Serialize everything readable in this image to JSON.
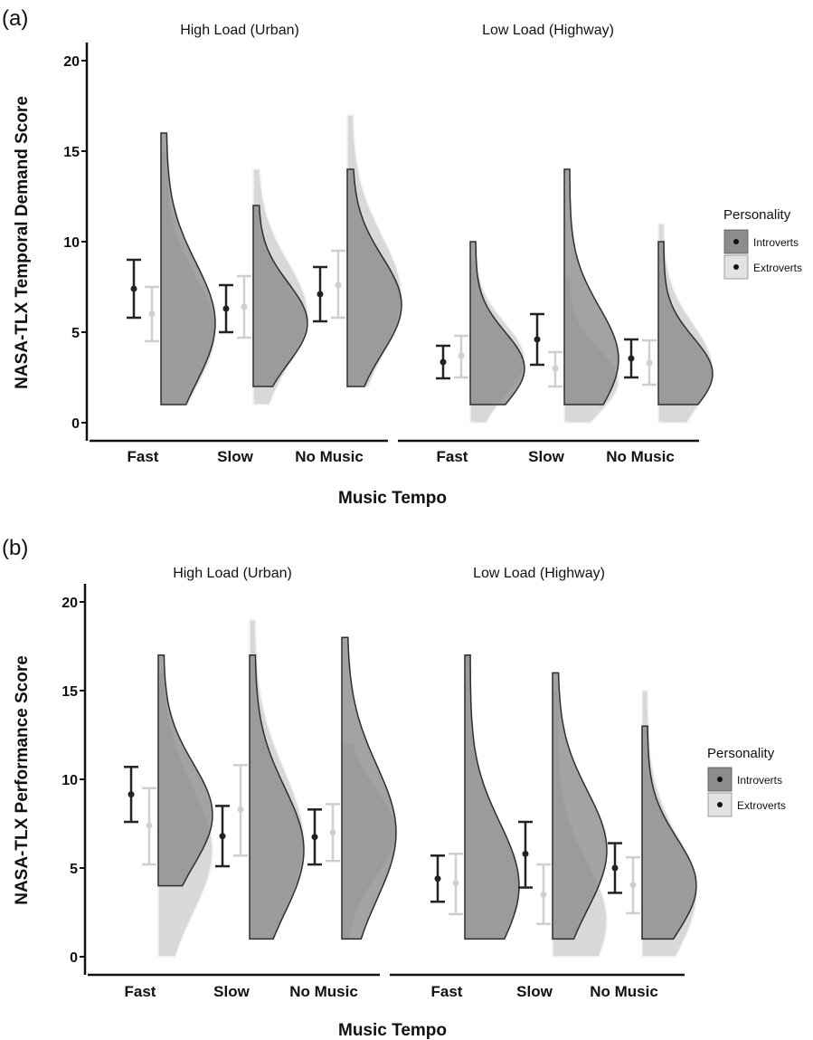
{
  "colors": {
    "introverts_fill": "#8c8c8c",
    "introverts_edge": "#2e2e2e",
    "extroverts_fill": "#d6d6d6",
    "extroverts_edge": "#f2f2f2",
    "overlap_fill": "#a6a6a6",
    "introverts_errorbar": "#222222",
    "extroverts_errorbar": "#cfcfcf"
  },
  "chart_data": [
    {
      "type": "raincloud",
      "panel_label": "(a)",
      "ylabel": "NASA-TLX Temporal Demand Score",
      "xlabel": "Music Tempo",
      "ylim": [
        0,
        20
      ],
      "yticks": [
        0,
        5,
        10,
        15,
        20
      ],
      "facets": [
        "High Load (Urban)",
        "Low Load (Highway)"
      ],
      "categories": [
        "Fast",
        "Slow",
        "No Music"
      ],
      "legend": {
        "title": "Personality",
        "entries": [
          "Introverts",
          "Extroverts"
        ],
        "position": "right"
      },
      "series": [
        {
          "name": "Introverts",
          "mean": [
            [
              7.4,
              6.3,
              7.1
            ],
            [
              3.35,
              4.6,
              3.55
            ]
          ],
          "ci_low": [
            [
              5.8,
              5.0,
              5.6
            ],
            [
              2.45,
              3.2,
              2.5
            ]
          ],
          "ci_high": [
            [
              9.0,
              7.6,
              8.6
            ],
            [
              4.25,
              6.0,
              4.6
            ]
          ],
          "range": [
            [
              [
                1,
                16
              ],
              [
                2,
                12
              ],
              [
                2,
                14
              ]
            ],
            [
              [
                1,
                10
              ],
              [
                1,
                14
              ],
              [
                1,
                10
              ]
            ]
          ],
          "mode": [
            [
              5.5,
              5.5,
              6.5
            ],
            [
              3.0,
              3.5,
              2.7
            ]
          ]
        },
        {
          "name": "Extroverts",
          "mean": [
            [
              6.0,
              6.4,
              7.6
            ],
            [
              3.7,
              3.0,
              3.3
            ]
          ],
          "ci_low": [
            [
              4.5,
              4.7,
              5.8
            ],
            [
              2.5,
              2.0,
              2.1
            ]
          ],
          "ci_high": [
            [
              7.5,
              8.1,
              9.5
            ],
            [
              4.8,
              3.9,
              4.55
            ]
          ],
          "range": [
            [
              [
                1,
                15
              ],
              [
                1,
                14
              ],
              [
                2,
                17
              ]
            ],
            [
              [
                0,
                9
              ],
              [
                0,
                8
              ],
              [
                0,
                11
              ]
            ]
          ],
          "mode": [
            [
              5.0,
              6.0,
              7.0
            ],
            [
              3.5,
              2.3,
              3.0
            ]
          ]
        }
      ]
    },
    {
      "type": "raincloud",
      "panel_label": "(b)",
      "ylabel": "NASA-TLX Performance Score",
      "xlabel": "Music Tempo",
      "ylim": [
        0,
        20
      ],
      "yticks": [
        0,
        5,
        10,
        15,
        20
      ],
      "facets": [
        "High Load (Urban)",
        "Low Load (Highway)"
      ],
      "categories": [
        "Fast",
        "Slow",
        "No Music"
      ],
      "legend": {
        "title": "Personality",
        "entries": [
          "Introverts",
          "Extroverts"
        ],
        "position": "right"
      },
      "series": [
        {
          "name": "Introverts",
          "mean": [
            [
              9.15,
              6.8,
              6.75
            ],
            [
              4.4,
              5.8,
              5.0
            ]
          ],
          "ci_low": [
            [
              7.6,
              5.1,
              5.2
            ],
            [
              3.1,
              3.9,
              3.6
            ]
          ],
          "ci_high": [
            [
              10.7,
              8.5,
              8.3
            ],
            [
              5.7,
              7.6,
              6.4
            ]
          ],
          "range": [
            [
              [
                4,
                17
              ],
              [
                1,
                17
              ],
              [
                1,
                18
              ]
            ],
            [
              [
                1,
                17
              ],
              [
                1,
                16
              ],
              [
                1,
                13
              ]
            ]
          ],
          "mode": [
            [
              8.0,
              6.0,
              7.0
            ],
            [
              4.0,
              6.0,
              4.0
            ]
          ]
        },
        {
          "name": "Extroverts",
          "mean": [
            [
              7.4,
              8.3,
              7.0
            ],
            [
              4.15,
              3.5,
              4.05
            ]
          ],
          "ci_low": [
            [
              5.2,
              5.7,
              5.4
            ],
            [
              2.4,
              1.85,
              2.45
            ]
          ],
          "ci_high": [
            [
              9.5,
              10.8,
              8.6
            ],
            [
              5.8,
              5.2,
              5.6
            ]
          ],
          "range": [
            [
              [
                0,
                16
              ],
              [
                1,
                19
              ],
              [
                1,
                12
              ]
            ],
            [
              [
                1,
                17
              ],
              [
                0,
                15
              ],
              [
                0,
                15
              ]
            ]
          ],
          "mode": [
            [
              6.0,
              6.5,
              7.0
            ],
            [
              4.0,
              2.0,
              3.5
            ]
          ]
        }
      ]
    }
  ]
}
